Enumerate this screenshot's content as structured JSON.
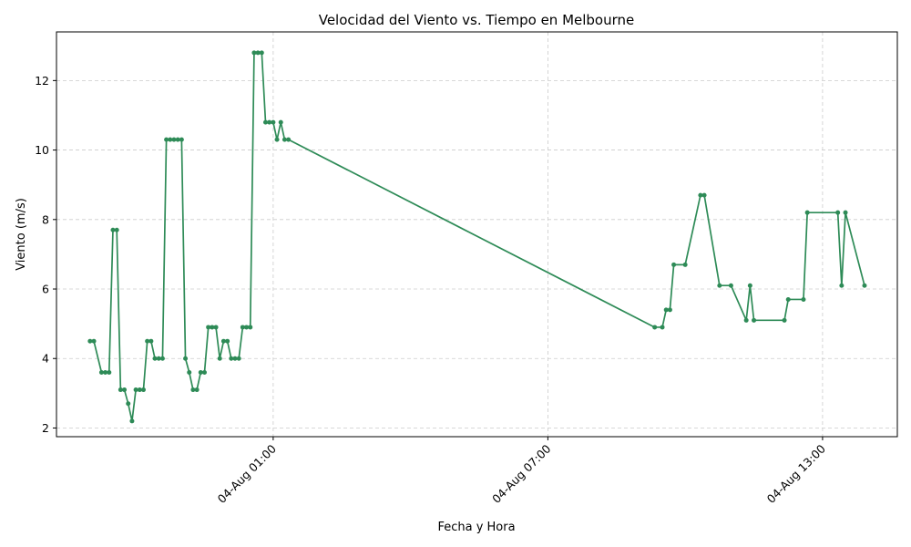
{
  "chart_data": {
    "type": "line",
    "title": "Velocidad del Viento vs. Tiempo en Melbourne",
    "xlabel": "Fecha y Hora",
    "ylabel": "Viento (m/s)",
    "x_is_time": true,
    "x_ticks": [
      {
        "value": "2024-08-04T01:00",
        "label": "04-Aug 01:00"
      },
      {
        "value": "2024-08-04T07:00",
        "label": "04-Aug 07:00"
      },
      {
        "value": "2024-08-04T13:00",
        "label": "04-Aug 13:00"
      }
    ],
    "y_ticks": [
      2,
      4,
      6,
      8,
      10,
      12
    ],
    "ylim": [
      1.75,
      13.4
    ],
    "xlim": [
      "2024-08-03T20:16",
      "2024-08-04T14:38"
    ],
    "grid": true,
    "legend": "none",
    "series_color": "#2e8b57",
    "series": [
      {
        "name": "",
        "x": [
          "2024-08-03T21:00",
          "2024-08-03T21:05",
          "2024-08-03T21:15",
          "2024-08-03T21:20",
          "2024-08-03T21:25",
          "2024-08-03T21:30",
          "2024-08-03T21:35",
          "2024-08-03T21:40",
          "2024-08-03T21:45",
          "2024-08-03T21:50",
          "2024-08-03T21:55",
          "2024-08-03T22:00",
          "2024-08-03T22:05",
          "2024-08-03T22:10",
          "2024-08-03T22:15",
          "2024-08-03T22:20",
          "2024-08-03T22:25",
          "2024-08-03T22:30",
          "2024-08-03T22:35",
          "2024-08-03T22:40",
          "2024-08-03T22:45",
          "2024-08-03T22:50",
          "2024-08-03T22:55",
          "2024-08-03T23:00",
          "2024-08-03T23:05",
          "2024-08-03T23:10",
          "2024-08-03T23:15",
          "2024-08-03T23:20",
          "2024-08-03T23:25",
          "2024-08-03T23:30",
          "2024-08-03T23:35",
          "2024-08-03T23:40",
          "2024-08-03T23:45",
          "2024-08-03T23:50",
          "2024-08-03T23:55",
          "2024-08-04T00:00",
          "2024-08-04T00:05",
          "2024-08-04T00:10",
          "2024-08-04T00:15",
          "2024-08-04T00:20",
          "2024-08-04T00:25",
          "2024-08-04T00:30",
          "2024-08-04T00:35",
          "2024-08-04T00:40",
          "2024-08-04T00:45",
          "2024-08-04T00:50",
          "2024-08-04T00:55",
          "2024-08-04T01:00",
          "2024-08-04T01:05",
          "2024-08-04T01:10",
          "2024-08-04T01:15",
          "2024-08-04T01:20",
          "2024-08-04T09:20",
          "2024-08-04T09:30",
          "2024-08-04T09:35",
          "2024-08-04T09:40",
          "2024-08-04T09:45",
          "2024-08-04T10:00",
          "2024-08-04T10:20",
          "2024-08-04T10:25",
          "2024-08-04T10:45",
          "2024-08-04T11:00",
          "2024-08-04T11:20",
          "2024-08-04T11:25",
          "2024-08-04T11:30",
          "2024-08-04T12:10",
          "2024-08-04T12:15",
          "2024-08-04T12:35",
          "2024-08-04T12:40",
          "2024-08-04T13:20",
          "2024-08-04T13:25",
          "2024-08-04T13:30",
          "2024-08-04T13:55"
        ],
        "y": [
          4.5,
          4.5,
          3.6,
          3.6,
          3.6,
          7.7,
          7.7,
          3.1,
          3.1,
          2.7,
          2.2,
          3.1,
          3.1,
          3.1,
          4.5,
          4.5,
          4.0,
          4.0,
          4.0,
          10.3,
          10.3,
          10.3,
          10.3,
          10.3,
          4.0,
          3.6,
          3.1,
          3.1,
          3.6,
          3.6,
          4.9,
          4.9,
          4.9,
          4.0,
          4.5,
          4.5,
          4.0,
          4.0,
          4.0,
          4.9,
          4.9,
          4.9,
          12.8,
          12.8,
          12.8,
          10.8,
          10.8,
          10.8,
          10.3,
          10.8,
          10.3,
          10.3,
          4.9,
          4.9,
          5.4,
          5.4,
          6.7,
          6.7,
          8.7,
          8.7,
          6.1,
          6.1,
          5.1,
          6.1,
          5.1,
          5.1,
          5.7,
          5.7,
          8.2,
          8.2,
          6.1,
          8.2,
          6.1
        ]
      }
    ]
  }
}
